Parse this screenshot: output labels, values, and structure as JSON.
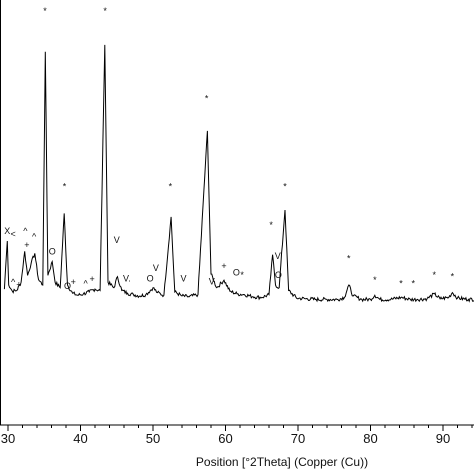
{
  "chart_data": {
    "type": "line",
    "xlabel": "Position [°2Theta] (Copper (Cu))",
    "ylabel": "",
    "title": "",
    "xlim": [
      29.5,
      95
    ],
    "x_ticks": [
      30,
      40,
      50,
      60,
      70,
      80,
      90
    ],
    "tick_labels": [
      "30",
      "40",
      "50",
      "60",
      "70",
      "80",
      "90"
    ],
    "grid": false,
    "series": [
      {
        "points": [
          [
            29.5,
            500
          ],
          [
            29.9,
            1200
          ],
          [
            30.1,
            560
          ],
          [
            30.6,
            470
          ],
          [
            31.2,
            480
          ],
          [
            31.8,
            600
          ],
          [
            32.3,
            1050
          ],
          [
            32.7,
            700
          ],
          [
            33.2,
            880
          ],
          [
            33.7,
            1020
          ],
          [
            34.2,
            640
          ],
          [
            34.8,
            560
          ],
          [
            35.15,
            3950
          ],
          [
            35.5,
            700
          ],
          [
            36.1,
            900
          ],
          [
            36.5,
            600
          ],
          [
            37.2,
            520
          ],
          [
            37.75,
            1600
          ],
          [
            38.2,
            560
          ],
          [
            38.9,
            440
          ],
          [
            39.6,
            410
          ],
          [
            40.4,
            430
          ],
          [
            41.2,
            460
          ],
          [
            42.0,
            500
          ],
          [
            42.7,
            480
          ],
          [
            43.35,
            4050
          ],
          [
            43.8,
            600
          ],
          [
            44.6,
            520
          ],
          [
            45.1,
            680
          ],
          [
            45.7,
            480
          ],
          [
            46.5,
            440
          ],
          [
            47.3,
            420
          ],
          [
            48.2,
            400
          ],
          [
            49.0,
            420
          ],
          [
            50.0,
            520
          ],
          [
            50.6,
            450
          ],
          [
            51.5,
            410
          ],
          [
            52.5,
            1550
          ],
          [
            53.0,
            460
          ],
          [
            54.0,
            400
          ],
          [
            55.0,
            390
          ],
          [
            56.2,
            420
          ],
          [
            57.5,
            2800
          ],
          [
            58.0,
            720
          ],
          [
            58.8,
            520
          ],
          [
            59.8,
            630
          ],
          [
            60.6,
            470
          ],
          [
            61.6,
            430
          ],
          [
            62.6,
            420
          ],
          [
            63.8,
            390
          ],
          [
            65.0,
            380
          ],
          [
            66.0,
            420
          ],
          [
            66.5,
            1000
          ],
          [
            66.9,
            560
          ],
          [
            67.4,
            520
          ],
          [
            68.2,
            1650
          ],
          [
            68.7,
            480
          ],
          [
            69.8,
            370
          ],
          [
            71.0,
            360
          ],
          [
            72.5,
            350
          ],
          [
            74.0,
            350
          ],
          [
            75.5,
            350
          ],
          [
            76.4,
            380
          ],
          [
            77.0,
            560
          ],
          [
            77.6,
            400
          ],
          [
            78.8,
            350
          ],
          [
            80.0,
            350
          ],
          [
            80.6,
            410
          ],
          [
            81.3,
            350
          ],
          [
            82.8,
            350
          ],
          [
            84.2,
            380
          ],
          [
            85.5,
            350
          ],
          [
            86.5,
            350
          ],
          [
            87.8,
            360
          ],
          [
            88.8,
            430
          ],
          [
            89.6,
            360
          ],
          [
            90.8,
            380
          ],
          [
            91.3,
            450
          ],
          [
            92.0,
            370
          ],
          [
            93.5,
            350
          ],
          [
            95.0,
            355
          ]
        ]
      }
    ],
    "annotations": [
      {
        "x": 35.1,
        "text": "*",
        "level": 4500
      },
      {
        "x": 43.4,
        "text": "*",
        "level": 4500
      },
      {
        "x": 57.4,
        "text": "*",
        "level": 3230
      },
      {
        "x": 37.8,
        "text": "*",
        "level": 1950
      },
      {
        "x": 52.4,
        "text": "*",
        "level": 1950
      },
      {
        "x": 68.2,
        "text": "*",
        "level": 1950
      },
      {
        "x": 66.3,
        "text": "*",
        "level": 1390
      },
      {
        "x": 29.9,
        "text": "X",
        "level": 1300
      },
      {
        "x": 30.7,
        "text": "<",
        "level": 1260
      },
      {
        "x": 32.4,
        "text": "^",
        "level": 1300
      },
      {
        "x": 33.6,
        "text": "^",
        "level": 1220
      },
      {
        "x": 32.6,
        "text": "+",
        "level": 1100
      },
      {
        "x": 36.1,
        "text": "O",
        "level": 1000
      },
      {
        "x": 45.0,
        "text": "V",
        "level": 1170
      },
      {
        "x": 50.4,
        "text": "V",
        "level": 760
      },
      {
        "x": 54.2,
        "text": "V",
        "level": 610
      },
      {
        "x": 46.4,
        "text": "V.",
        "level": 610
      },
      {
        "x": 49.6,
        "text": "O",
        "level": 610
      },
      {
        "x": 58.1,
        "text": "V",
        "level": 570
      },
      {
        "x": 59.8,
        "text": "+",
        "level": 790
      },
      {
        "x": 61.5,
        "text": "O",
        "level": 700
      },
      {
        "x": 62.3,
        "text": "*",
        "level": 660
      },
      {
        "x": 67.2,
        "text": "V",
        "level": 940
      },
      {
        "x": 67.3,
        "text": "O",
        "level": 660
      },
      {
        "x": 30.7,
        "text": "^",
        "level": 560
      },
      {
        "x": 31.5,
        "text": "+",
        "level": 520
      },
      {
        "x": 38.2,
        "text": "O",
        "level": 500
      },
      {
        "x": 39.0,
        "text": "+",
        "level": 560
      },
      {
        "x": 40.7,
        "text": "^",
        "level": 540
      },
      {
        "x": 41.6,
        "text": "+",
        "level": 600
      },
      {
        "x": 77.0,
        "text": "*",
        "level": 900
      },
      {
        "x": 80.6,
        "text": "*",
        "level": 590
      },
      {
        "x": 84.2,
        "text": "*",
        "level": 540
      },
      {
        "x": 85.9,
        "text": "*",
        "level": 540
      },
      {
        "x": 88.8,
        "text": "*",
        "level": 660
      },
      {
        "x": 91.3,
        "text": "*",
        "level": 640
      }
    ]
  }
}
